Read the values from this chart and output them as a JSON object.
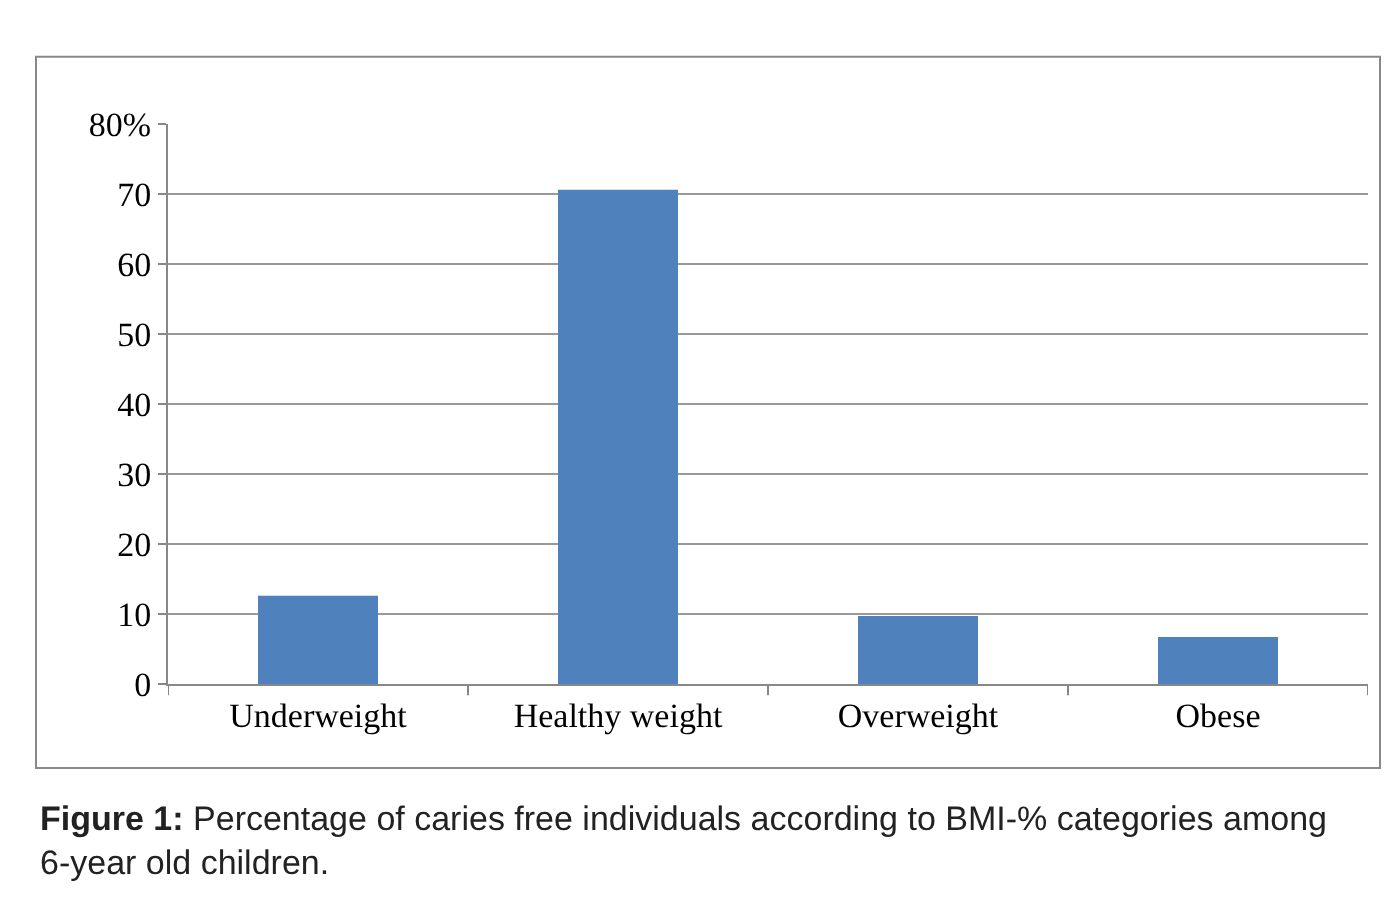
{
  "chart_data": {
    "type": "bar",
    "categories": [
      "Underweight",
      "Healthy weight",
      "Overweight",
      "Obese"
    ],
    "values": [
      12.6,
      70.6,
      9.7,
      6.7
    ],
    "color": "#4f81bd",
    "ylim": [
      0,
      80
    ],
    "yticks": [
      0,
      10,
      20,
      30,
      40,
      50,
      60,
      70,
      {
        "value": 80,
        "label": "80%"
      }
    ],
    "grid": "y",
    "legend": false,
    "annotations": [
      "Figure 1: Percentage of caries free individuals according to BMI-% categories among 6-year old children."
    ]
  }
}
